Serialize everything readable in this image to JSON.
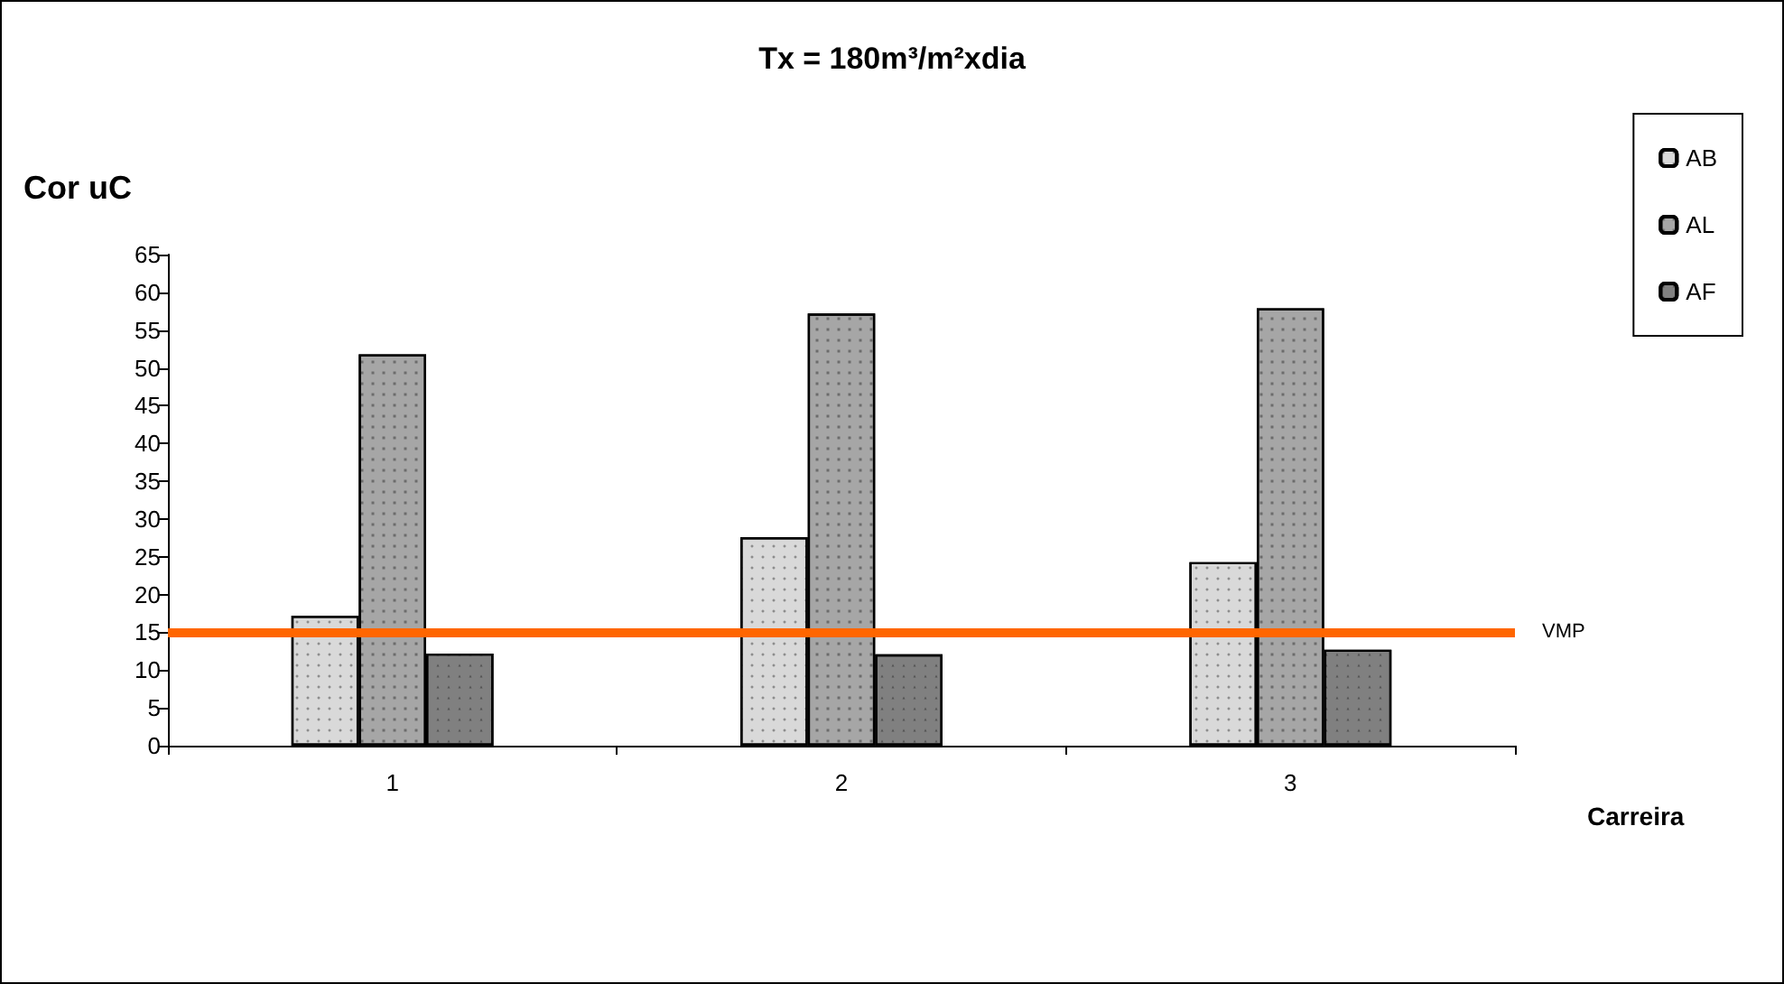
{
  "chart_data": {
    "type": "bar",
    "title": "Tx = 180m³/m²xdia",
    "ylabel": "Cor uC",
    "xlabel": "Carreira",
    "categories": [
      "1",
      "2",
      "3"
    ],
    "series": [
      {
        "name": "AB",
        "color": "#d9d9d9",
        "values": [
          17.2,
          27.6,
          24.3
        ]
      },
      {
        "name": "AL",
        "color": "#a6a6a6",
        "values": [
          51.8,
          57.2,
          57.9
        ]
      },
      {
        "name": "AF",
        "color": "#808080",
        "values": [
          12.2,
          12.1,
          12.7
        ]
      }
    ],
    "ylim": [
      0,
      65
    ],
    "yticks": [
      0,
      5,
      10,
      15,
      20,
      25,
      30,
      35,
      40,
      45,
      50,
      55,
      60,
      65
    ],
    "ref_lines": [
      {
        "axis": "y",
        "value": 15,
        "label": "VMP",
        "color": "#ff6600"
      }
    ],
    "grid": false,
    "legend": "top right"
  }
}
